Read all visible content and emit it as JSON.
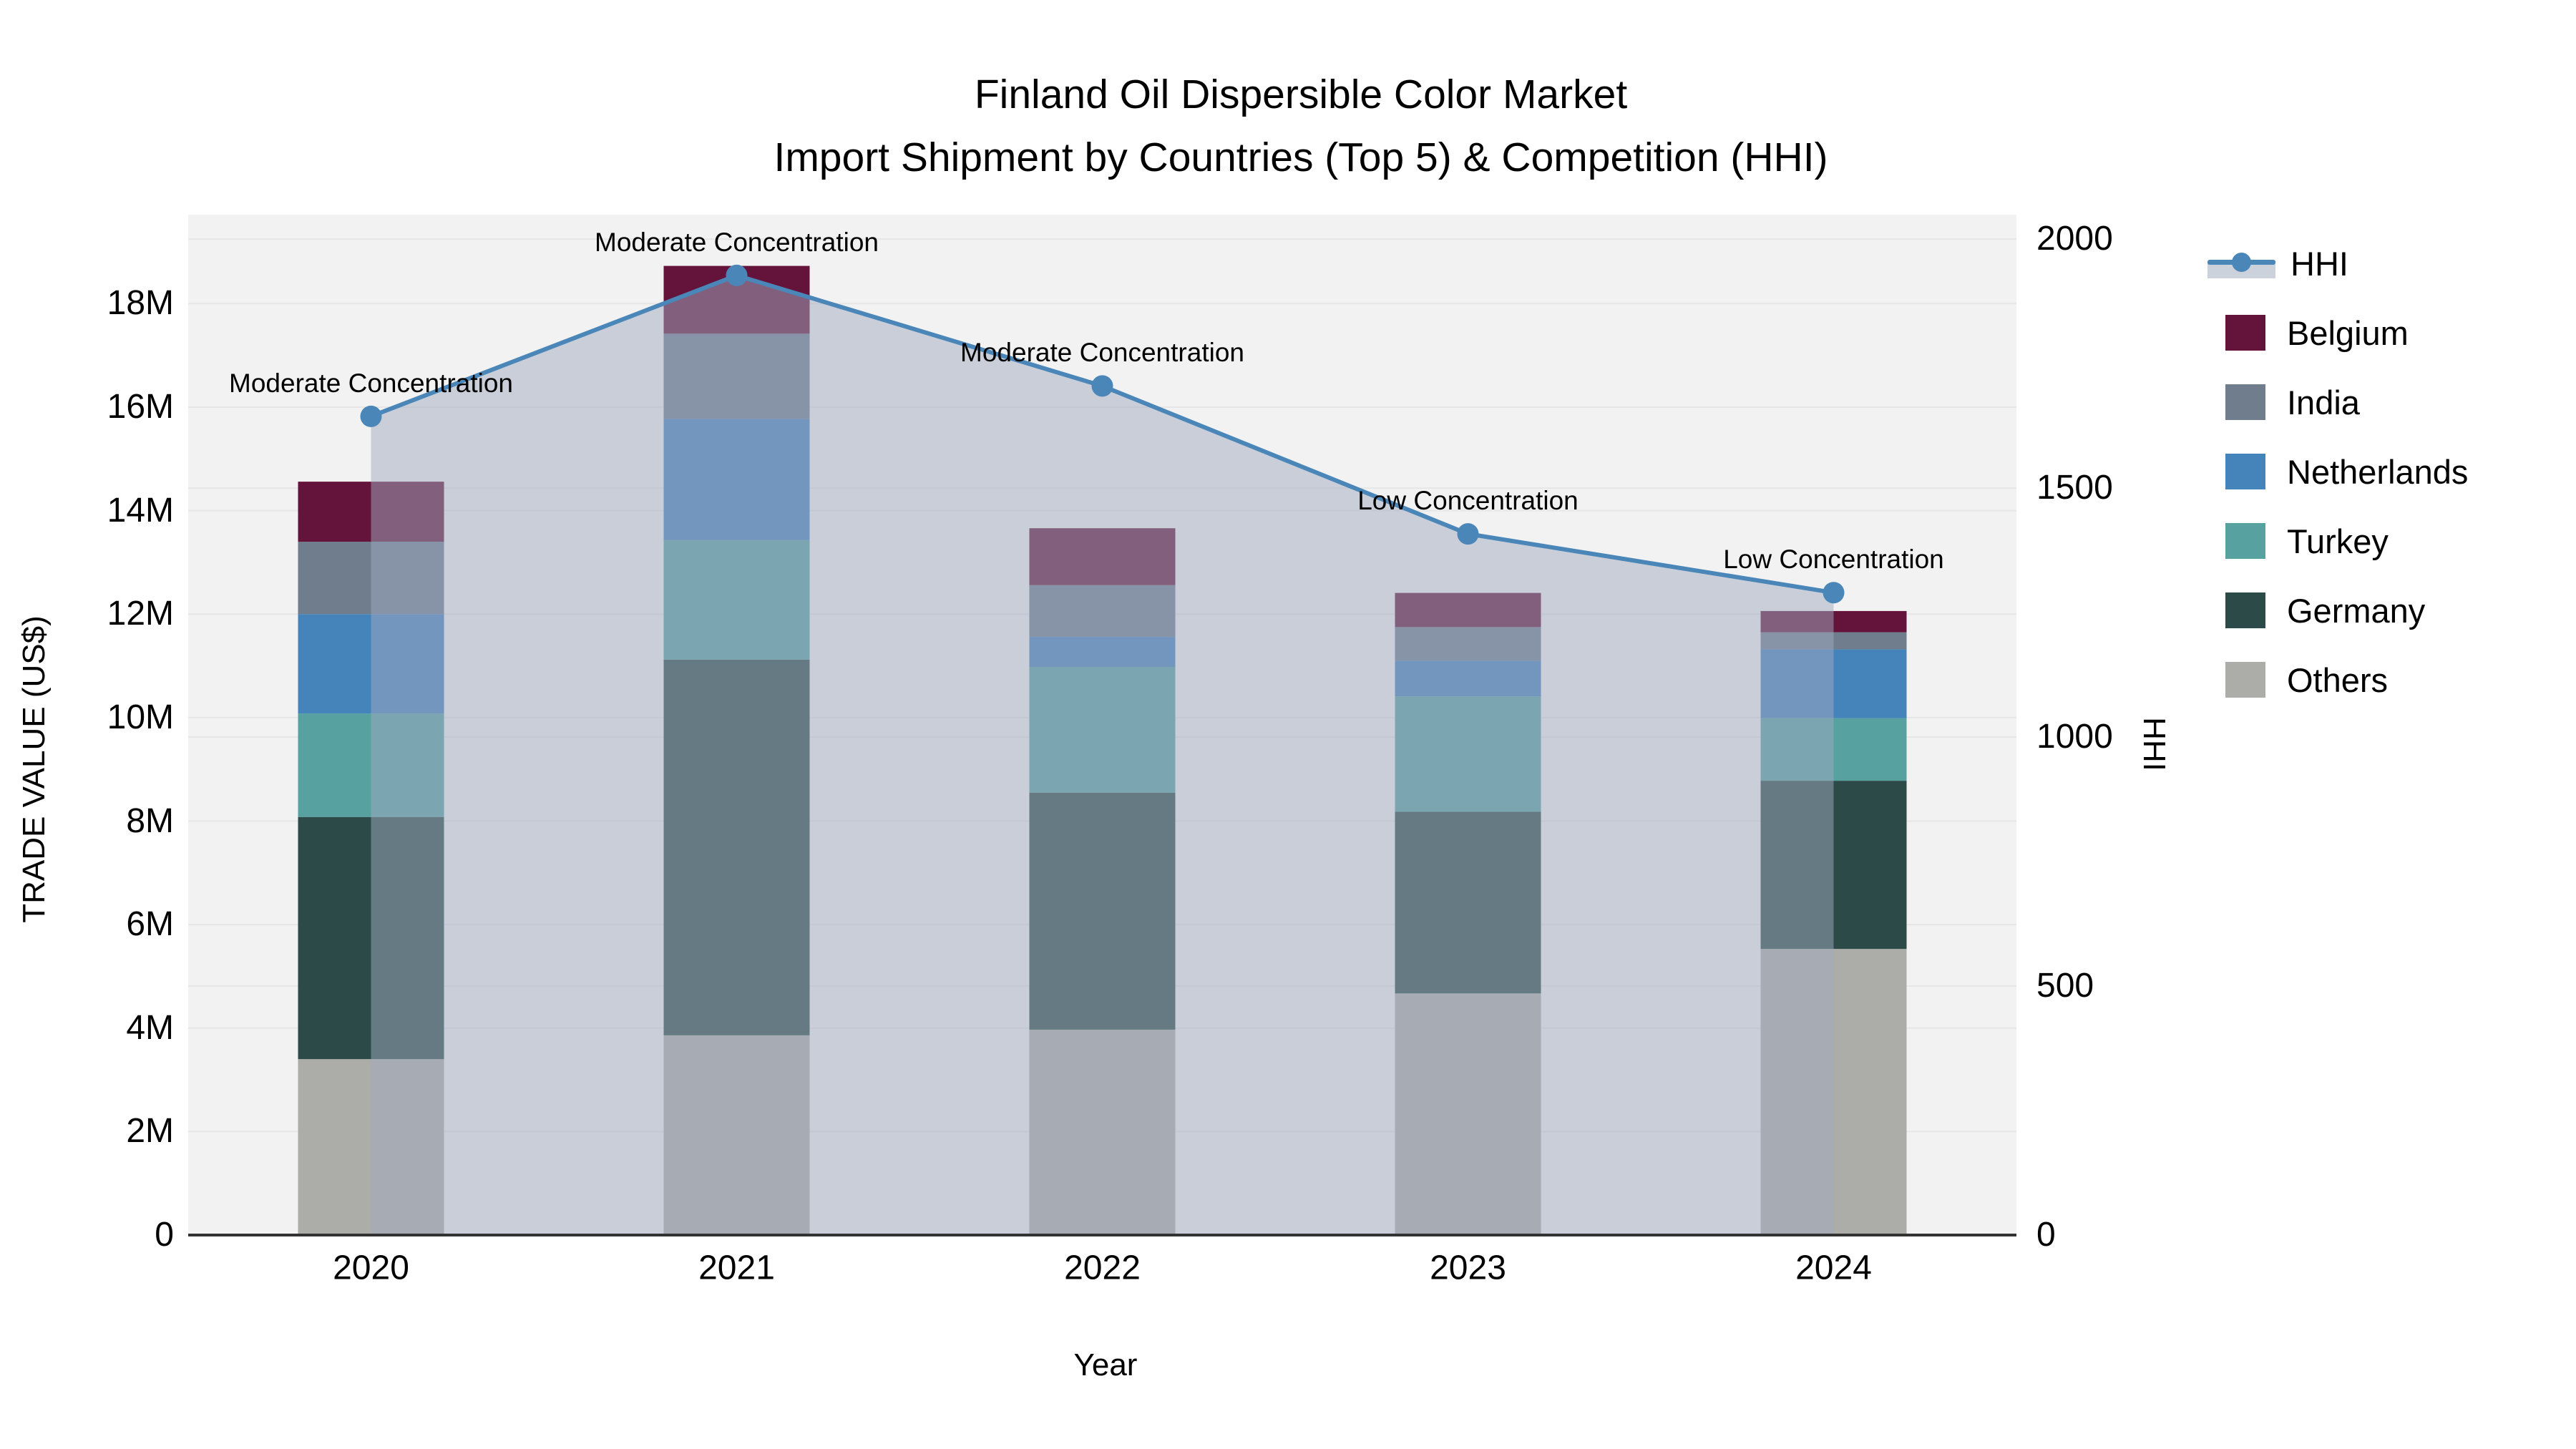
{
  "title": {
    "line1": "Finland Oil Dispersible Color Market",
    "line2": "Import Shipment by Countries (Top 5) & Competition (HHI)"
  },
  "axes": {
    "x": {
      "label": "Year",
      "categories": [
        "2020",
        "2021",
        "2022",
        "2023",
        "2024"
      ]
    },
    "y_left": {
      "label": "TRADE VALUE (US$)",
      "tick_labels": [
        "0",
        "2M",
        "4M",
        "6M",
        "8M",
        "10M",
        "12M",
        "14M",
        "16M",
        "18M"
      ],
      "tick_values": [
        0,
        2,
        4,
        6,
        8,
        10,
        12,
        14,
        16,
        18
      ]
    },
    "y_right": {
      "label": "HHI",
      "tick_labels": [
        "0",
        "500",
        "1000",
        "1500",
        "2000"
      ],
      "tick_values": [
        0,
        500,
        1000,
        1500,
        2000
      ]
    }
  },
  "legend": {
    "items": [
      {
        "label": "HHI",
        "type": "line",
        "color": "#4a86b8"
      },
      {
        "label": "Belgium",
        "type": "swatch",
        "color": "#64143a"
      },
      {
        "label": "India",
        "type": "swatch",
        "color": "#6f7d8c"
      },
      {
        "label": "Netherlands",
        "type": "swatch",
        "color": "#4583bb"
      },
      {
        "label": "Turkey",
        "type": "swatch",
        "color": "#57a1a1"
      },
      {
        "label": "Germany",
        "type": "swatch",
        "color": "#2c4b48"
      },
      {
        "label": "Others",
        "type": "swatch",
        "color": "#acaca9"
      }
    ]
  },
  "colors": {
    "plot_background": "#f2f2f2",
    "gridline": "#e6e6e6",
    "baseline": "#333333",
    "hhi_line": "#4a86b8",
    "hhi_area_fill": "rgba(160,170,192,0.5)"
  },
  "chart_data": {
    "type": "bar",
    "subtype": "stacked-bars-with-line",
    "title": "Finland Oil Dispersible Color Market — Import Shipment by Countries (Top 5) & Competition (HHI)",
    "xlabel": "Year",
    "ylabel_left": "TRADE VALUE (US$)",
    "ylabel_right": "HHI",
    "categories": [
      "2020",
      "2021",
      "2022",
      "2023",
      "2024"
    ],
    "bar_value_unit": "million US$",
    "ylim_left_millions": [
      0,
      19.72
    ],
    "ylim_right_hhi": [
      0,
      2049
    ],
    "grid": "on",
    "legend_position": "right",
    "series": [
      {
        "name": "Others",
        "values": [
          3.4,
          3.86,
          3.97,
          4.67,
          5.53
        ],
        "color": "#acaca9"
      },
      {
        "name": "Germany",
        "values": [
          4.68,
          7.26,
          4.58,
          3.51,
          3.25
        ],
        "color": "#2c4b48"
      },
      {
        "name": "Turkey",
        "values": [
          2.0,
          2.31,
          2.43,
          2.23,
          1.21
        ],
        "color": "#57a1a1"
      },
      {
        "name": "Netherlands",
        "values": [
          1.92,
          2.34,
          0.58,
          0.69,
          1.33
        ],
        "color": "#4583bb"
      },
      {
        "name": "India",
        "values": [
          1.4,
          1.65,
          1.0,
          0.65,
          0.33
        ],
        "color": "#6f7d8c"
      },
      {
        "name": "Belgium",
        "values": [
          1.16,
          1.31,
          1.1,
          0.66,
          0.41
        ],
        "color": "#64143a"
      }
    ],
    "stacked_totals_millions": [
      14.56,
      18.73,
      13.66,
      12.41,
      12.06
    ],
    "line_series": {
      "name": "HHI",
      "values": [
        1644,
        1927,
        1705,
        1408,
        1290
      ],
      "color": "#4a86b8",
      "area_fill": true
    },
    "annotations": [
      {
        "category": "2020",
        "text": "Moderate Concentration"
      },
      {
        "category": "2021",
        "text": "Moderate Concentration"
      },
      {
        "category": "2022",
        "text": "Moderate Concentration"
      },
      {
        "category": "2023",
        "text": "Low Concentration"
      },
      {
        "category": "2024",
        "text": "Low Concentration"
      }
    ]
  }
}
